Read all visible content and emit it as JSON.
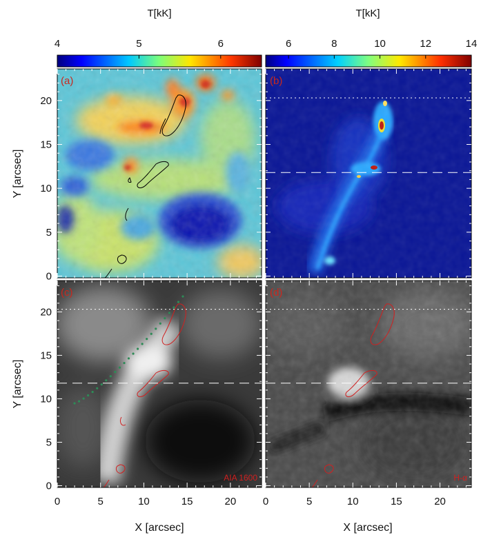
{
  "colorbars": [
    {
      "id": "cb-left",
      "label": "T[kK]",
      "ticks": [
        "4",
        "5",
        "6"
      ],
      "tick_values": [
        4,
        5,
        6
      ],
      "range": [
        4,
        6.5
      ]
    },
    {
      "id": "cb-right",
      "label": "T[kK]",
      "ticks": [
        "6",
        "8",
        "10",
        "12",
        "14"
      ],
      "tick_values": [
        6,
        8,
        10,
        12,
        14
      ],
      "range": [
        5,
        14
      ]
    }
  ],
  "panels": [
    {
      "id": "a",
      "label": "(a)",
      "label_color": "#c8281e",
      "annotation": ""
    },
    {
      "id": "b",
      "label": "(b)",
      "label_color": "#c8281e",
      "annotation": ""
    },
    {
      "id": "c",
      "label": "(c)",
      "label_color": "#c8281e",
      "annotation": "AIA 1600"
    },
    {
      "id": "d",
      "label": "(d)",
      "label_color": "#c8281e",
      "annotation": "H-α"
    }
  ],
  "axes": {
    "xlabel": "X [arcsec]",
    "ylabel": "Y [arcsec]",
    "xticks": [
      "0",
      "5",
      "10",
      "15",
      "20"
    ],
    "yticks": [
      "0",
      "5",
      "10",
      "15",
      "20"
    ],
    "xlim": [
      0,
      23.6
    ],
    "ylim": [
      -0.2,
      23.6
    ]
  },
  "reference_lines": {
    "dotted_y": 20.3,
    "dashed_y": 11.8
  },
  "colors": {
    "contour_top": "#000000",
    "contour_bottom": "#d02020",
    "green_path": "#2e8b57",
    "ref_lines": "#ffffff"
  }
}
